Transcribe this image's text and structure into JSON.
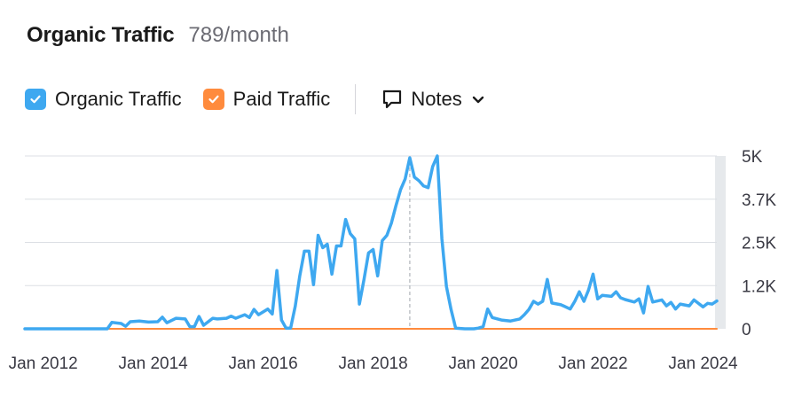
{
  "header": {
    "title": "Organic Traffic",
    "subtitle": "789/month"
  },
  "legend": {
    "items": [
      {
        "label": "Organic Traffic",
        "color": "#3ea8f0",
        "checked": true
      },
      {
        "label": "Paid Traffic",
        "color": "#ff8b3d",
        "checked": true
      }
    ],
    "notes_label": "Notes"
  },
  "chart_data": {
    "type": "line",
    "title": "Organic Traffic",
    "xlabel": "",
    "ylabel": "",
    "x_range": [
      "2011-09",
      "2024-04"
    ],
    "ylim": [
      0,
      4900
    ],
    "y_ticks": [
      {
        "value": 0,
        "label": "0"
      },
      {
        "value": 1225,
        "label": "1.2K"
      },
      {
        "value": 2450,
        "label": "2.5K"
      },
      {
        "value": 3675,
        "label": "3.7K"
      },
      {
        "value": 4900,
        "label": "5K"
      }
    ],
    "x_ticks": [
      {
        "value": "2012-01",
        "label": "Jan 2012"
      },
      {
        "value": "2014-01",
        "label": "Jan 2014"
      },
      {
        "value": "2016-01",
        "label": "Jan 2016"
      },
      {
        "value": "2018-01",
        "label": "Jan 2018"
      },
      {
        "value": "2020-01",
        "label": "Jan 2020"
      },
      {
        "value": "2022-01",
        "label": "Jan 2022"
      },
      {
        "value": "2024-01",
        "label": "Jan 2024"
      }
    ],
    "grid": true,
    "marker_line": "2018-09",
    "series": [
      {
        "name": "Organic Traffic",
        "color": "#3ea8f0",
        "points": [
          [
            "2011-09",
            0
          ],
          [
            "2013-03",
            0
          ],
          [
            "2013-04",
            180
          ],
          [
            "2013-06",
            150
          ],
          [
            "2013-07",
            70
          ],
          [
            "2013-08",
            200
          ],
          [
            "2013-10",
            220
          ],
          [
            "2013-12",
            190
          ],
          [
            "2014-02",
            200
          ],
          [
            "2014-03",
            330
          ],
          [
            "2014-04",
            170
          ],
          [
            "2014-06",
            300
          ],
          [
            "2014-08",
            280
          ],
          [
            "2014-09",
            60
          ],
          [
            "2014-10",
            60
          ],
          [
            "2014-11",
            350
          ],
          [
            "2014-12",
            100
          ],
          [
            "2015-02",
            300
          ],
          [
            "2015-03",
            280
          ],
          [
            "2015-05",
            300
          ],
          [
            "2015-06",
            360
          ],
          [
            "2015-07",
            300
          ],
          [
            "2015-09",
            400
          ],
          [
            "2015-10",
            320
          ],
          [
            "2015-11",
            550
          ],
          [
            "2015-12",
            400
          ],
          [
            "2016-02",
            560
          ],
          [
            "2016-03",
            420
          ],
          [
            "2016-04",
            1650
          ],
          [
            "2016-05",
            250
          ],
          [
            "2016-06",
            20
          ],
          [
            "2016-07",
            20
          ],
          [
            "2016-08",
            640
          ],
          [
            "2016-09",
            1500
          ],
          [
            "2016-10",
            2200
          ],
          [
            "2016-11",
            2200
          ],
          [
            "2016-12",
            1250
          ],
          [
            "2017-01",
            2650
          ],
          [
            "2017-02",
            2300
          ],
          [
            "2017-03",
            2400
          ],
          [
            "2017-04",
            1550
          ],
          [
            "2017-05",
            2350
          ],
          [
            "2017-06",
            2350
          ],
          [
            "2017-07",
            3100
          ],
          [
            "2017-08",
            2700
          ],
          [
            "2017-09",
            2550
          ],
          [
            "2017-10",
            700
          ],
          [
            "2017-11",
            1400
          ],
          [
            "2017-12",
            2150
          ],
          [
            "2018-01",
            2250
          ],
          [
            "2018-02",
            1500
          ],
          [
            "2018-03",
            2500
          ],
          [
            "2018-04",
            2650
          ],
          [
            "2018-05",
            3000
          ],
          [
            "2018-06",
            3500
          ],
          [
            "2018-07",
            3950
          ],
          [
            "2018-08",
            4250
          ],
          [
            "2018-09",
            4850
          ],
          [
            "2018-10",
            4300
          ],
          [
            "2018-11",
            4200
          ],
          [
            "2018-12",
            4050
          ],
          [
            "2019-01",
            4000
          ],
          [
            "2019-02",
            4600
          ],
          [
            "2019-03",
            4900
          ],
          [
            "2019-04",
            2550
          ],
          [
            "2019-05",
            1200
          ],
          [
            "2019-06",
            550
          ],
          [
            "2019-07",
            20
          ],
          [
            "2019-08",
            10
          ],
          [
            "2019-09",
            0
          ],
          [
            "2019-10",
            0
          ],
          [
            "2019-11",
            0
          ],
          [
            "2019-12",
            20
          ],
          [
            "2020-01",
            60
          ],
          [
            "2020-02",
            560
          ],
          [
            "2020-03",
            320
          ],
          [
            "2020-05",
            250
          ],
          [
            "2020-07",
            220
          ],
          [
            "2020-09",
            280
          ],
          [
            "2020-10",
            400
          ],
          [
            "2020-11",
            550
          ],
          [
            "2020-12",
            780
          ],
          [
            "2021-01",
            700
          ],
          [
            "2021-02",
            780
          ],
          [
            "2021-03",
            1400
          ],
          [
            "2021-04",
            730
          ],
          [
            "2021-06",
            680
          ],
          [
            "2021-08",
            560
          ],
          [
            "2021-09",
            780
          ],
          [
            "2021-10",
            1050
          ],
          [
            "2021-11",
            780
          ],
          [
            "2021-12",
            1100
          ],
          [
            "2022-01",
            1550
          ],
          [
            "2022-02",
            850
          ],
          [
            "2022-03",
            950
          ],
          [
            "2022-05",
            920
          ],
          [
            "2022-06",
            1050
          ],
          [
            "2022-07",
            880
          ],
          [
            "2022-08",
            830
          ],
          [
            "2022-10",
            760
          ],
          [
            "2022-11",
            850
          ],
          [
            "2022-12",
            450
          ],
          [
            "2023-01",
            1200
          ],
          [
            "2023-02",
            760
          ],
          [
            "2023-04",
            820
          ],
          [
            "2023-05",
            650
          ],
          [
            "2023-06",
            750
          ],
          [
            "2023-07",
            560
          ],
          [
            "2023-08",
            700
          ],
          [
            "2023-10",
            650
          ],
          [
            "2023-11",
            820
          ],
          [
            "2024-01",
            620
          ],
          [
            "2024-02",
            720
          ],
          [
            "2024-03",
            700
          ],
          [
            "2024-04",
            789
          ]
        ]
      },
      {
        "name": "Paid Traffic",
        "color": "#ff8b3d",
        "points": [
          [
            "2011-09",
            0
          ],
          [
            "2024-04",
            0
          ]
        ]
      }
    ]
  }
}
